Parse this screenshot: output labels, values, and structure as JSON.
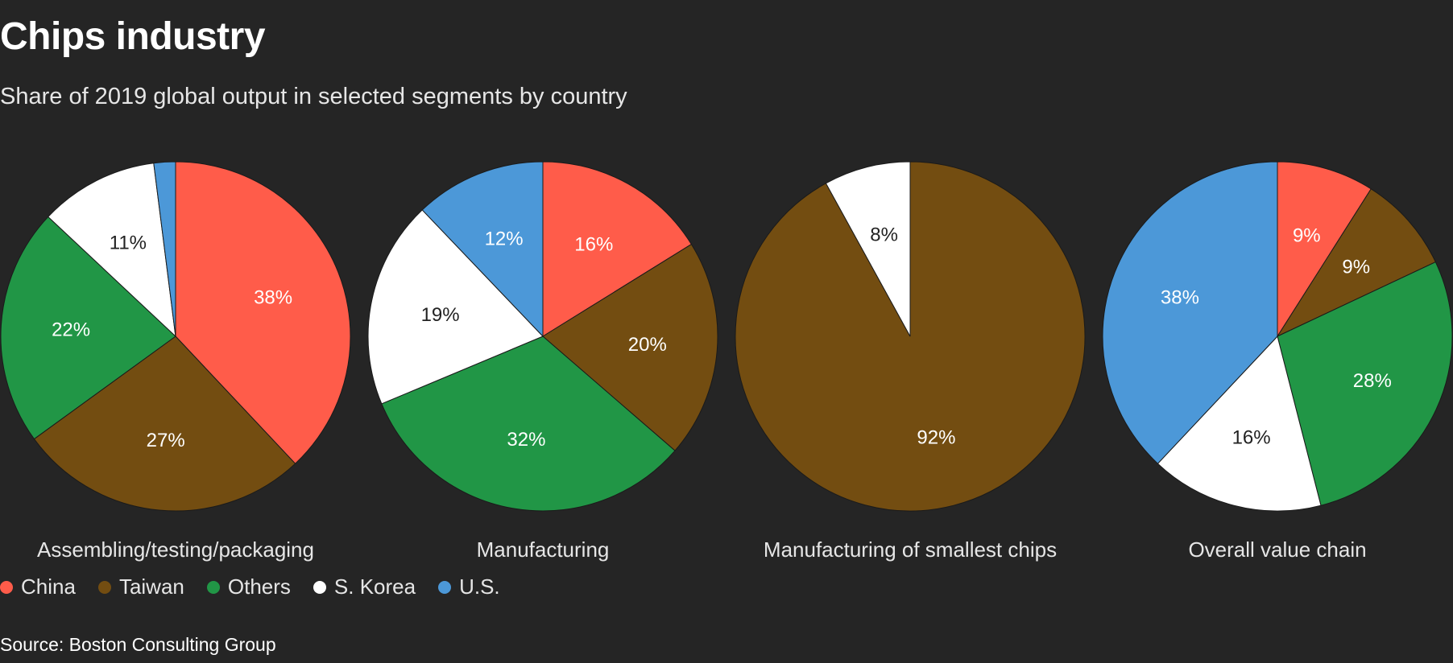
{
  "header": {
    "title": "Chips industry",
    "subtitle": "Share of 2019 global output in selected segments by country"
  },
  "colors": {
    "China": "#ff5c4a",
    "Taiwan": "#734d11",
    "Others": "#219646",
    "S. Korea": "#ffffff",
    "U.S.": "#4c98d8",
    "background": "#252525"
  },
  "legend": [
    {
      "label": "China",
      "color": "#ff5c4a"
    },
    {
      "label": "Taiwan",
      "color": "#734d11"
    },
    {
      "label": "Others",
      "color": "#219646"
    },
    {
      "label": "S. Korea",
      "color": "#ffffff"
    },
    {
      "label": "U.S.",
      "color": "#4c98d8"
    }
  ],
  "chart_data": [
    {
      "type": "pie",
      "title": "Assembling/testing/packaging",
      "slices": [
        {
          "category": "China",
          "value": 38,
          "label": "38%"
        },
        {
          "category": "Taiwan",
          "value": 27,
          "label": "27%"
        },
        {
          "category": "Others",
          "value": 22,
          "label": "22%"
        },
        {
          "category": "S. Korea",
          "value": 11,
          "label": "11%"
        },
        {
          "category": "U.S.",
          "value": 2,
          "label": ""
        }
      ]
    },
    {
      "type": "pie",
      "title": "Manufacturing",
      "slices": [
        {
          "category": "China",
          "value": 16,
          "label": "16%"
        },
        {
          "category": "Taiwan",
          "value": 20,
          "label": "20%"
        },
        {
          "category": "Others",
          "value": 32,
          "label": "32%"
        },
        {
          "category": "S. Korea",
          "value": 19,
          "label": "19%"
        },
        {
          "category": "U.S.",
          "value": 12,
          "label": "12%"
        }
      ]
    },
    {
      "type": "pie",
      "title": "Manufacturing of smallest chips",
      "slices": [
        {
          "category": "Taiwan",
          "value": 92,
          "label": "92%"
        },
        {
          "category": "S. Korea",
          "value": 8,
          "label": "8%"
        }
      ]
    },
    {
      "type": "pie",
      "title": "Overall value chain",
      "slices": [
        {
          "category": "China",
          "value": 9,
          "label": "9%"
        },
        {
          "category": "Taiwan",
          "value": 9,
          "label": "9%"
        },
        {
          "category": "Others",
          "value": 28,
          "label": "28%"
        },
        {
          "category": "S. Korea",
          "value": 16,
          "label": "16%"
        },
        {
          "category": "U.S.",
          "value": 38,
          "label": "38%"
        }
      ]
    }
  ],
  "source": "Source: Boston Consulting Group"
}
